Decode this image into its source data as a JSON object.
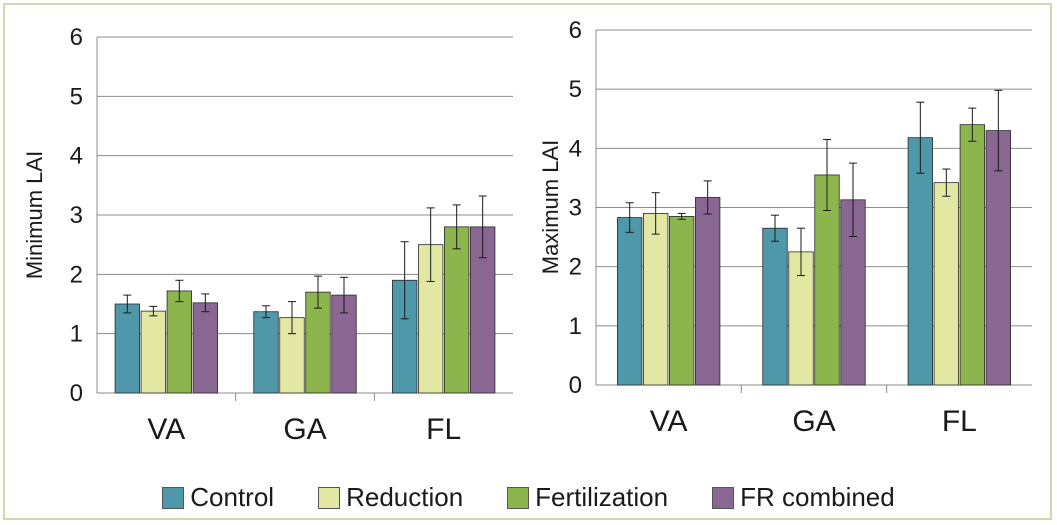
{
  "colors": {
    "Control": "#4e98aa",
    "Reduction": "#e2e8a4",
    "Fertilization": "#8db54e",
    "FR combined": "#8a6693"
  },
  "legend": {
    "items": [
      "Control",
      "Reduction",
      "Fertilization",
      "FR combined"
    ]
  },
  "chart_data": [
    {
      "type": "bar",
      "title": "",
      "ylabel": "Minimum LAI",
      "xlabel": "",
      "ylim": [
        0,
        6
      ],
      "yticks": [
        "0",
        "1",
        "2",
        "3",
        "4",
        "5",
        "6"
      ],
      "categories": [
        "VA",
        "GA",
        "FL"
      ],
      "grid": true,
      "series": [
        {
          "name": "Control",
          "values": [
            1.5,
            1.37,
            1.9
          ],
          "errors": [
            0.15,
            0.1,
            0.65
          ]
        },
        {
          "name": "Reduction",
          "values": [
            1.38,
            1.27,
            2.5
          ],
          "errors": [
            0.08,
            0.27,
            0.62
          ]
        },
        {
          "name": "Fertilization",
          "values": [
            1.72,
            1.7,
            2.8
          ],
          "errors": [
            0.18,
            0.27,
            0.37
          ]
        },
        {
          "name": "FR combined",
          "values": [
            1.52,
            1.65,
            2.8
          ],
          "errors": [
            0.15,
            0.3,
            0.52
          ]
        }
      ]
    },
    {
      "type": "bar",
      "title": "",
      "ylabel": "Maximum LAI",
      "xlabel": "",
      "ylim": [
        0,
        6
      ],
      "yticks": [
        "0",
        "1",
        "2",
        "3",
        "4",
        "5",
        "6"
      ],
      "categories": [
        "VA",
        "GA",
        "FL"
      ],
      "grid": true,
      "series": [
        {
          "name": "Control",
          "values": [
            2.83,
            2.65,
            4.18
          ],
          "errors": [
            0.25,
            0.22,
            0.6
          ]
        },
        {
          "name": "Reduction",
          "values": [
            2.9,
            2.25,
            3.42
          ],
          "errors": [
            0.35,
            0.4,
            0.23
          ]
        },
        {
          "name": "Fertilization",
          "values": [
            2.85,
            3.55,
            4.4
          ],
          "errors": [
            0.05,
            0.6,
            0.28
          ]
        },
        {
          "name": "FR combined",
          "values": [
            3.17,
            3.13,
            4.3
          ],
          "errors": [
            0.28,
            0.62,
            0.68
          ]
        }
      ]
    }
  ]
}
